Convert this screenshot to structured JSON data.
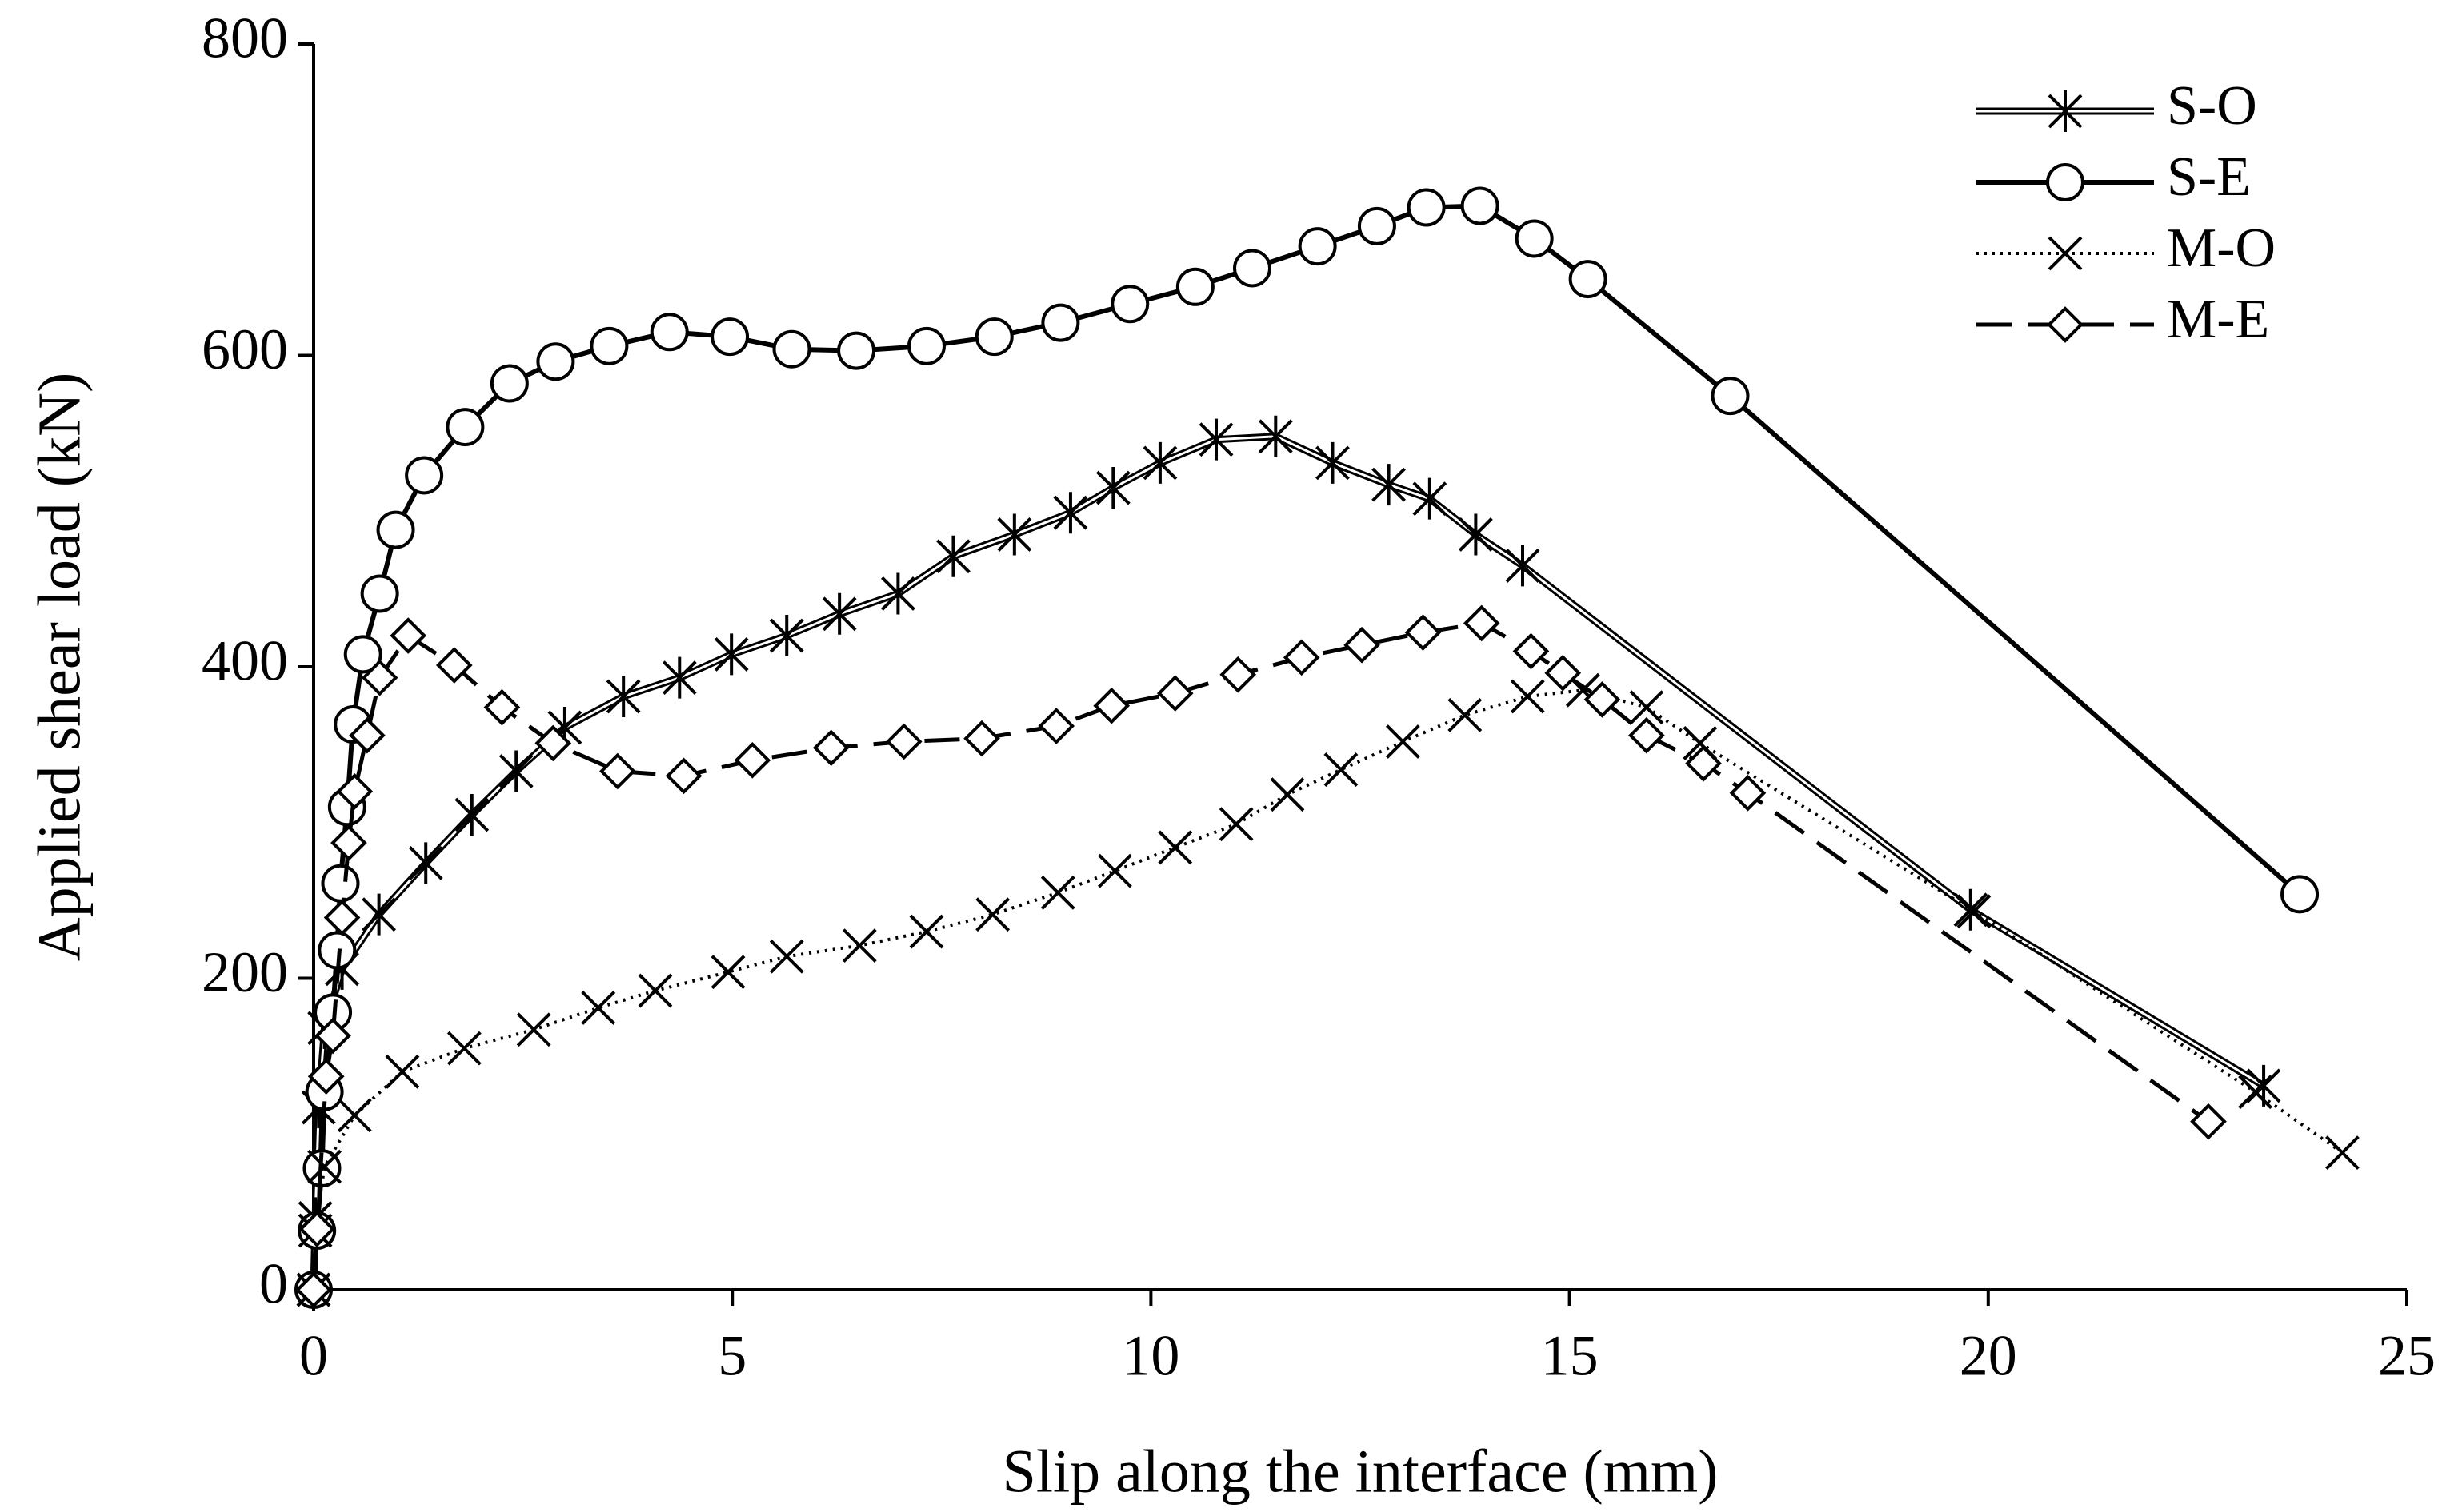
{
  "chart_data": {
    "type": "line",
    "xlabel": "Slip along the interface (mm)",
    "ylabel": "Applied shear load (kN)",
    "xlim": [
      0,
      25
    ],
    "xticks": [
      0,
      5,
      10,
      15,
      20,
      25
    ],
    "ylim": [
      0,
      800
    ],
    "yticks": [
      0,
      200,
      400,
      600,
      800
    ],
    "legend": "upper right",
    "series": [
      {
        "name": "S-O",
        "color": "#000000",
        "marker": "asterisk",
        "linestyle": "double",
        "x": [
          0,
          0.02,
          0.06,
          0.13,
          0.34,
          0.78,
          1.34,
          1.89,
          2.42,
          3.0,
          3.7,
          4.37,
          4.99,
          5.65,
          6.28,
          6.98,
          7.64,
          8.37,
          9.04,
          9.55,
          10.11,
          10.78,
          11.49,
          12.17,
          12.84,
          13.33,
          13.88,
          14.44,
          19.79,
          23.29
        ],
        "values": [
          0,
          46,
          117,
          168,
          206,
          241,
          274,
          305,
          333,
          361,
          381,
          393,
          408,
          420,
          434,
          447,
          471,
          485,
          499,
          515,
          531,
          546,
          548,
          531,
          517,
          508,
          485,
          465,
          244,
          131
        ]
      },
      {
        "name": "S-E",
        "color": "#000000",
        "marker": "circle",
        "linestyle": "solid",
        "x": [
          0,
          0.04,
          0.1,
          0.13,
          0.23,
          0.28,
          0.32,
          0.4,
          0.47,
          0.59,
          0.79,
          0.98,
          1.32,
          1.81,
          2.34,
          2.89,
          3.53,
          4.25,
          4.97,
          5.71,
          6.48,
          7.32,
          8.13,
          8.92,
          9.75,
          10.53,
          11.21,
          11.99,
          12.7,
          13.29,
          13.93,
          14.58,
          15.22,
          16.92,
          23.72
        ],
        "values": [
          0,
          38,
          78,
          127,
          178,
          218,
          261,
          310,
          363,
          408,
          447,
          488,
          523,
          554,
          582,
          596,
          606,
          615,
          612,
          604,
          603,
          606,
          612,
          621,
          633,
          644,
          656,
          670,
          683,
          695,
          696,
          675,
          649,
          574,
          254
        ]
      },
      {
        "name": "M-O",
        "color": "#000000",
        "marker": "cross",
        "linestyle": "dotted",
        "x": [
          0,
          0.02,
          0.13,
          0.49,
          1.06,
          1.8,
          2.63,
          3.4,
          4.08,
          4.95,
          5.65,
          6.52,
          7.32,
          8.11,
          8.89,
          9.57,
          10.29,
          11.02,
          11.63,
          12.27,
          13.01,
          13.75,
          14.5,
          15.16,
          15.92,
          16.56,
          19.83,
          23.19,
          24.23
        ],
        "values": [
          0,
          38,
          79,
          112,
          140,
          155,
          167,
          181,
          192,
          204,
          214,
          221,
          230,
          241,
          255,
          269,
          284,
          299,
          318,
          334,
          352,
          369,
          381,
          385,
          374,
          351,
          243,
          127,
          88
        ]
      },
      {
        "name": "M-E",
        "color": "#000000",
        "marker": "diamond",
        "linestyle": "dashed",
        "x": [
          0,
          0.04,
          0.15,
          0.23,
          0.34,
          0.42,
          0.49,
          0.64,
          0.79,
          1.13,
          1.68,
          2.25,
          2.86,
          3.63,
          4.42,
          5.24,
          6.18,
          7.05,
          7.98,
          8.87,
          9.53,
          10.29,
          11.04,
          11.8,
          12.52,
          13.25,
          13.95,
          14.54,
          14.92,
          15.39,
          15.92,
          16.6,
          17.13,
          22.63
        ],
        "values": [
          0,
          39,
          137,
          163,
          239,
          287,
          320,
          356,
          393,
          420,
          401,
          374,
          351,
          333,
          330,
          340,
          348,
          352,
          354,
          362,
          375,
          383,
          395,
          406,
          414,
          422,
          428,
          410,
          396,
          379,
          356,
          338,
          319,
          108
        ]
      }
    ]
  }
}
